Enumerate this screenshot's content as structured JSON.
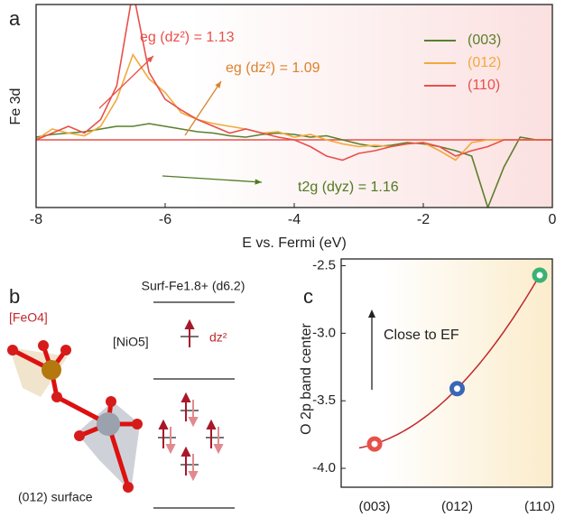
{
  "chart_data": [
    {
      "type": "line",
      "panel": "a",
      "ylabel": "Fe 3d",
      "xlabel": "E vs. Fermi (eV)",
      "x": [
        -8,
        -7.75,
        -7.5,
        -7.25,
        -7,
        -6.75,
        -6.5,
        -6.25,
        -6,
        -5.75,
        -5.5,
        -5.25,
        -5,
        -4.75,
        -4.5,
        -4.25,
        -4,
        -3.75,
        -3.5,
        -3.25,
        -3,
        -2.75,
        -2.5,
        -2.25,
        -2,
        -1.75,
        -1.5,
        -1.25,
        -1,
        -0.75,
        -0.5,
        -0.25,
        0
      ],
      "series": [
        {
          "name": "(003)",
          "color": "#5b7f2b",
          "values": [
            0.02,
            0.04,
            0.05,
            0.06,
            0.08,
            0.1,
            0.1,
            0.12,
            0.1,
            0.08,
            0.06,
            0.05,
            0.03,
            0.02,
            0.04,
            0.05,
            0.04,
            0.02,
            0.03,
            0.0,
            -0.03,
            -0.05,
            -0.04,
            -0.02,
            -0.03,
            -0.05,
            -0.08,
            -0.12,
            -0.5,
            -0.2,
            0.02,
            0.0,
            0.0
          ]
        },
        {
          "name": "(012)",
          "color": "#f2a93b",
          "values": [
            0,
            0.08,
            0.05,
            0.03,
            0.1,
            0.3,
            0.63,
            0.45,
            0.35,
            0.2,
            0.15,
            0.12,
            0.1,
            0.08,
            0.05,
            0.06,
            0.02,
            0.04,
            0.0,
            -0.03,
            -0.05,
            -0.04,
            -0.05,
            -0.03,
            -0.02,
            -0.08,
            -0.15,
            -0.02,
            0.0,
            0.0,
            0.0,
            0.0,
            0.0
          ]
        },
        {
          "name": "(110)",
          "color": "#e8504a",
          "values": [
            0.0,
            0.05,
            0.1,
            0.05,
            0.15,
            0.4,
            1.1,
            0.5,
            0.3,
            0.22,
            0.15,
            0.1,
            0.05,
            0.08,
            0.05,
            0.02,
            0.0,
            -0.05,
            -0.12,
            -0.15,
            -0.1,
            -0.08,
            -0.05,
            -0.03,
            -0.02,
            -0.05,
            -0.12,
            -0.08,
            -0.05,
            0.0,
            0.0,
            0.0,
            0.0
          ]
        }
      ],
      "xlim": [
        -8,
        0
      ],
      "xticks": [
        -8,
        -6,
        -4,
        -2,
        0
      ],
      "ylim": [
        -0.5,
        1.0
      ],
      "legend": "upper right",
      "annotations": [
        {
          "text": "eg (dz²) = 1.13",
          "color": "#e8504a"
        },
        {
          "text": "eg (dz²) = 1.09",
          "color": "#d9822b"
        },
        {
          "text": "t2g (dyz) = 1.16",
          "color": "#4f7a22"
        }
      ]
    },
    {
      "type": "scatter",
      "panel": "c",
      "ylabel": "O 2p band center",
      "annotation": "Close to EF",
      "categories": [
        "(003)",
        "(012)",
        "(110)"
      ],
      "values": [
        -3.82,
        -3.41,
        -2.57
      ],
      "colors": [
        "#e8504a",
        "#3a66b8",
        "#3bb273"
      ],
      "line_color": "#c0282d",
      "ylim": [
        -4.14,
        -2.45
      ],
      "yticks": [
        -2.5,
        {
          "value": -3.0,
          "label": "-3.0"
        },
        -3.5,
        {
          "value": -4.0,
          "label": "-4.0"
        }
      ]
    }
  ],
  "diagram": {
    "panel": "b",
    "feo4": "[FeO4]",
    "nio5": "[NiO5]",
    "surface": "(012) surface",
    "title": "Surf-Fe1.8+ (d6.2)",
    "orbital": "dz²"
  }
}
